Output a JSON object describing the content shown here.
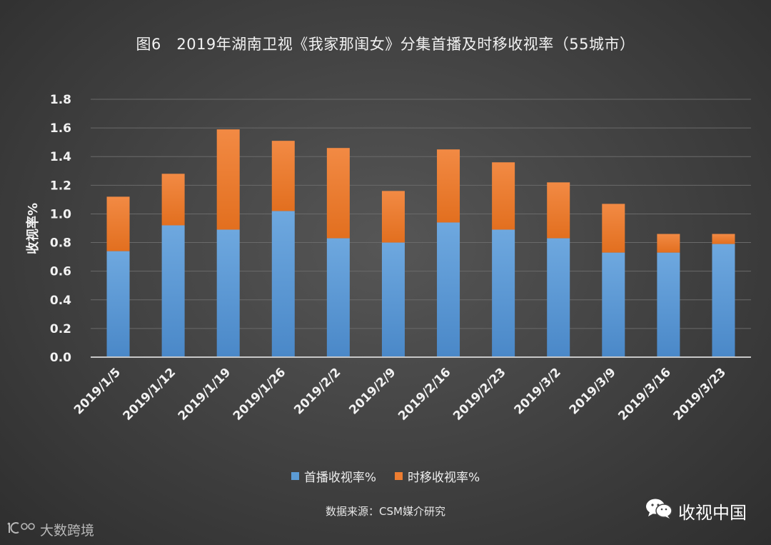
{
  "chart_data": {
    "type": "bar",
    "stacked": true,
    "title": "图6　2019年湖南卫视《我家那闺女》分集首播及时移收视率（55城市）",
    "ylabel": "收视率%",
    "xlabel": "",
    "ylim": [
      0,
      1.8
    ],
    "yticks": [
      "0.0",
      "0.2",
      "0.4",
      "0.6",
      "0.8",
      "1.0",
      "1.2",
      "1.4",
      "1.6",
      "1.8"
    ],
    "grid": true,
    "legend_position": "bottom",
    "categories": [
      "2019/1/5",
      "2019/1/12",
      "2019/1/19",
      "2019/1/26",
      "2019/2/2",
      "2019/2/9",
      "2019/2/16",
      "2019/2/23",
      "2019/3/2",
      "2019/3/9",
      "2019/3/16",
      "2019/3/23"
    ],
    "series": [
      {
        "name": "首播收视率%",
        "color": "#5b9bd5",
        "values": [
          0.74,
          0.92,
          0.89,
          1.02,
          0.83,
          0.8,
          0.94,
          0.89,
          0.83,
          0.73,
          0.73,
          0.79
        ]
      },
      {
        "name": "时移收视率%",
        "color": "#ed7d31",
        "values": [
          0.38,
          0.36,
          0.7,
          0.49,
          0.63,
          0.36,
          0.51,
          0.47,
          0.39,
          0.34,
          0.13,
          0.07
        ]
      }
    ]
  },
  "footer": {
    "source": "数据来源：CSM媒介研究",
    "brand": "收视中国",
    "watermark": "大数跨境"
  },
  "icons": {
    "brand_icon": "wechat-icon",
    "watermark_icon": "logo-icon"
  }
}
